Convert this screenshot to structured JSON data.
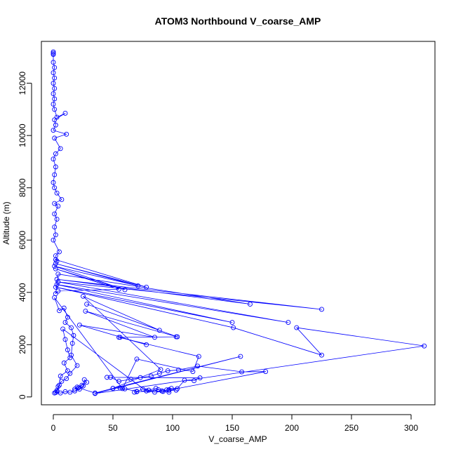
{
  "chart_data": {
    "type": "scatter",
    "title": "ATOM3 Northbound V_coarse_AMP",
    "xlabel": "V_coarse_AMP",
    "ylabel": "Altitude (m)",
    "xlim": [
      -10,
      320
    ],
    "ylim": [
      -300,
      13600
    ],
    "xticks": [
      0,
      50,
      100,
      150,
      200,
      250,
      300
    ],
    "yticks": [
      0,
      2000,
      4000,
      6000,
      8000,
      10000,
      12000
    ],
    "grid": false,
    "legend": "none",
    "series": [
      {
        "mode": "lines+markers",
        "color": "#0000ff",
        "points": [
          [
            0,
            13200
          ],
          [
            0,
            13150
          ],
          [
            0,
            13100
          ],
          [
            0,
            12800
          ],
          [
            1,
            12600
          ],
          [
            0,
            12400
          ],
          [
            1,
            12200
          ],
          [
            0,
            12000
          ],
          [
            1,
            11800
          ],
          [
            0,
            11600
          ],
          [
            1,
            11400
          ],
          [
            0,
            11200
          ],
          [
            1,
            11000
          ],
          [
            3,
            10700
          ],
          [
            10,
            10850
          ],
          [
            1,
            10600
          ],
          [
            2,
            10400
          ],
          [
            0,
            10200
          ],
          [
            11,
            10050
          ],
          [
            1,
            9900
          ],
          [
            6,
            9500
          ],
          [
            2,
            9300
          ],
          [
            0,
            9100
          ],
          [
            2,
            8800
          ],
          [
            1,
            8500
          ],
          [
            0,
            8200
          ],
          [
            1,
            8000
          ],
          [
            3,
            7800
          ],
          [
            7,
            7550
          ],
          [
            1,
            7400
          ],
          [
            4,
            7300
          ],
          [
            1,
            7000
          ],
          [
            3,
            6800
          ],
          [
            1,
            6500
          ],
          [
            2,
            6200
          ],
          [
            0,
            6000
          ],
          [
            5,
            5550
          ],
          [
            2,
            5400
          ],
          [
            3,
            5200
          ],
          [
            2,
            5250
          ],
          [
            78,
            4200
          ],
          [
            2,
            5100
          ],
          [
            71,
            4250
          ],
          [
            1,
            5000
          ],
          [
            60,
            4100
          ],
          [
            2,
            4900
          ],
          [
            55,
            4120
          ],
          [
            4,
            4050
          ],
          [
            2,
            3950
          ],
          [
            4,
            4700
          ],
          [
            165,
            3550
          ],
          [
            3,
            4500
          ],
          [
            225,
            3350
          ],
          [
            4,
            4400
          ],
          [
            197,
            2850
          ],
          [
            3,
            4300
          ],
          [
            150,
            2850
          ],
          [
            2,
            4200
          ],
          [
            151,
            2650
          ],
          [
            225,
            1600
          ],
          [
            204,
            2650
          ],
          [
            311,
            1950
          ],
          [
            35,
            130
          ],
          [
            157,
            1550
          ],
          [
            50,
            330
          ],
          [
            90,
            1050
          ],
          [
            25,
            3850
          ],
          [
            89,
            2550
          ],
          [
            28,
            3550
          ],
          [
            104,
            2300
          ],
          [
            27,
            3280
          ],
          [
            85,
            2280
          ],
          [
            22,
            2750
          ],
          [
            78,
            2000
          ],
          [
            56,
            2280
          ],
          [
            103,
            2300
          ],
          [
            55,
            2280
          ],
          [
            122,
            1550
          ],
          [
            117,
            970
          ],
          [
            70,
            1450
          ],
          [
            58,
            320
          ],
          [
            1,
            3800
          ],
          [
            5,
            3300
          ],
          [
            9,
            3400
          ],
          [
            12,
            3050
          ],
          [
            10,
            2850
          ],
          [
            15,
            2650
          ],
          [
            17,
            2350
          ],
          [
            16,
            2050
          ],
          [
            15,
            1600
          ],
          [
            20,
            1200
          ],
          [
            14,
            900
          ],
          [
            11,
            700
          ],
          [
            7,
            600
          ],
          [
            4,
            400
          ],
          [
            3,
            250
          ],
          [
            2,
            170
          ],
          [
            6,
            150
          ],
          [
            10,
            200
          ],
          [
            14,
            180
          ],
          [
            18,
            230
          ],
          [
            22,
            300
          ],
          [
            25,
            420
          ],
          [
            26,
            660
          ],
          [
            28,
            560
          ],
          [
            24,
            450
          ],
          [
            20,
            380
          ],
          [
            18,
            300
          ],
          [
            21,
            350
          ],
          [
            35,
            150
          ],
          [
            50,
            330
          ],
          [
            56,
            340
          ],
          [
            60,
            310
          ],
          [
            70,
            210
          ],
          [
            75,
            300
          ],
          [
            80,
            260
          ],
          [
            86,
            330
          ],
          [
            91,
            230
          ],
          [
            95,
            270
          ],
          [
            99,
            330
          ],
          [
            104,
            320
          ],
          [
            110,
            640
          ],
          [
            118,
            620
          ],
          [
            123,
            730
          ],
          [
            45,
            750
          ],
          [
            48,
            750
          ],
          [
            55,
            600
          ],
          [
            65,
            680
          ],
          [
            73,
            740
          ],
          [
            82,
            800
          ],
          [
            89,
            900
          ],
          [
            96,
            1000
          ],
          [
            105,
            1030
          ],
          [
            121,
            1180
          ],
          [
            158,
            960
          ],
          [
            178,
            970
          ],
          [
            97,
            260
          ],
          [
            97,
            280
          ],
          [
            103,
            260
          ],
          [
            70,
            200
          ],
          [
            68,
            180
          ],
          [
            88,
            280
          ],
          [
            97,
            180
          ],
          [
            92,
            210
          ],
          [
            85,
            180
          ],
          [
            78,
            230
          ],
          [
            8,
            2600
          ],
          [
            10,
            2200
          ],
          [
            12,
            1800
          ],
          [
            14,
            1500
          ],
          [
            9,
            1300
          ],
          [
            12,
            1000
          ],
          [
            6,
            800
          ],
          [
            5,
            450
          ],
          [
            3,
            200
          ],
          [
            1,
            150
          ]
        ]
      }
    ]
  }
}
